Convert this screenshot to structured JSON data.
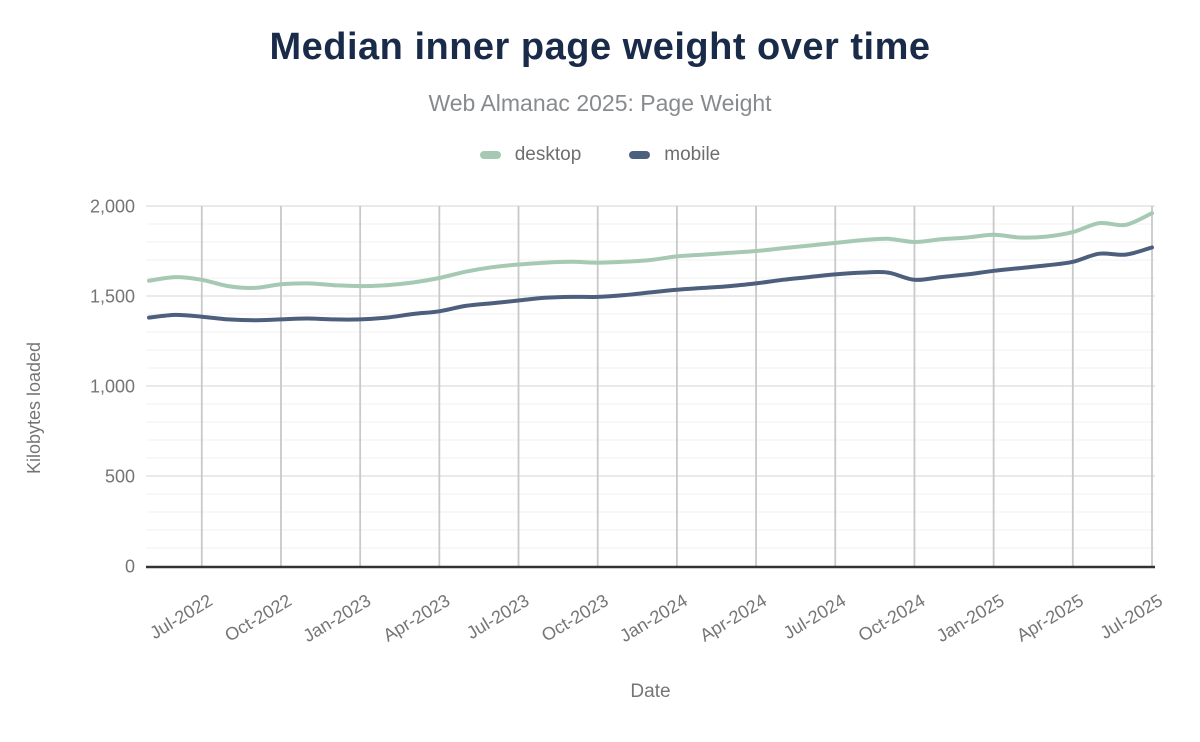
{
  "header": {
    "title": "Median inner page weight over time",
    "subtitle": "Web Almanac 2025: Page Weight"
  },
  "legend": {
    "items": [
      {
        "label": "desktop",
        "color": "#a6c9b4"
      },
      {
        "label": "mobile",
        "color": "#4e5f7e"
      }
    ]
  },
  "colors": {
    "title": "#1a2b49",
    "subtitle": "#888b8e",
    "axis_text": "#757575",
    "axis_line": "#333333",
    "major_gridline": "#e4e4e4",
    "minor_gridline": "#f3f3f3",
    "vertical_gridline": "#c9c9c9",
    "background": "#ffffff"
  },
  "chart_data": {
    "type": "line",
    "title": "Median inner page weight over time",
    "subtitle": "Web Almanac 2025: Page Weight",
    "xlabel": "Date",
    "ylabel": "Kilobytes loaded",
    "ylim": [
      0,
      2000
    ],
    "y_major_step": 500,
    "y_minor_step": 100,
    "yticklabels": [
      "0",
      "500",
      "1,000",
      "1,500",
      "2,000"
    ],
    "grid": true,
    "legend_position": "top",
    "x": [
      "May-2022",
      "Jun-2022",
      "Jul-2022",
      "Aug-2022",
      "Sep-2022",
      "Oct-2022",
      "Nov-2022",
      "Dec-2022",
      "Jan-2023",
      "Feb-2023",
      "Mar-2023",
      "Apr-2023",
      "May-2023",
      "Jun-2023",
      "Jul-2023",
      "Aug-2023",
      "Sep-2023",
      "Oct-2023",
      "Nov-2023",
      "Dec-2023",
      "Jan-2024",
      "Feb-2024",
      "Mar-2024",
      "Apr-2024",
      "May-2024",
      "Jun-2024",
      "Jul-2024",
      "Aug-2024",
      "Sep-2024",
      "Oct-2024",
      "Nov-2024",
      "Dec-2024",
      "Jan-2025",
      "Feb-2025",
      "Mar-2025",
      "Apr-2025",
      "May-2025",
      "Jun-2025",
      "Jul-2025"
    ],
    "xticks": [
      "Jul-2022",
      "Oct-2022",
      "Jan-2023",
      "Apr-2023",
      "Jul-2023",
      "Oct-2023",
      "Jan-2024",
      "Apr-2024",
      "Jul-2024",
      "Oct-2024",
      "Jan-2025",
      "Apr-2025",
      "Jul-2025"
    ],
    "series": [
      {
        "name": "desktop",
        "color": "#a6c9b4",
        "values": [
          1585,
          1605,
          1590,
          1555,
          1545,
          1565,
          1570,
          1560,
          1555,
          1560,
          1575,
          1600,
          1635,
          1660,
          1675,
          1685,
          1690,
          1685,
          1690,
          1700,
          1720,
          1730,
          1740,
          1750,
          1765,
          1780,
          1795,
          1810,
          1818,
          1800,
          1815,
          1825,
          1840,
          1825,
          1830,
          1855,
          1905,
          1895,
          1960
        ]
      },
      {
        "name": "mobile",
        "color": "#4e5f7e",
        "values": [
          1380,
          1395,
          1385,
          1370,
          1365,
          1370,
          1375,
          1370,
          1370,
          1380,
          1400,
          1415,
          1445,
          1460,
          1475,
          1490,
          1495,
          1495,
          1505,
          1520,
          1535,
          1545,
          1555,
          1570,
          1590,
          1605,
          1620,
          1630,
          1630,
          1590,
          1605,
          1620,
          1640,
          1655,
          1670,
          1690,
          1735,
          1730,
          1770
        ]
      }
    ]
  }
}
